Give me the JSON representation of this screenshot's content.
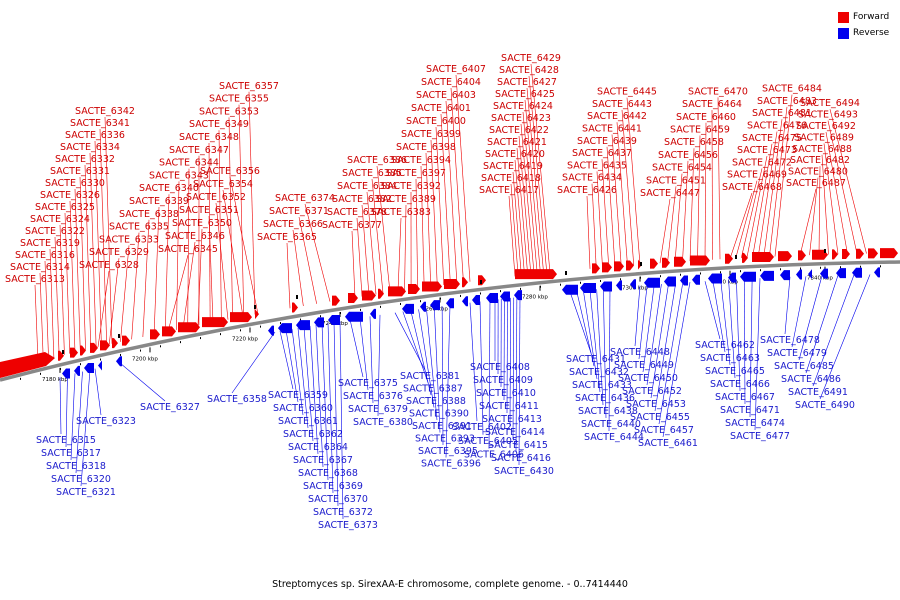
{
  "legend": {
    "forward_label": "Forward",
    "reverse_label": "Reverse",
    "forward_color": "#ee0000",
    "reverse_color": "#0000ee"
  },
  "caption": "Streptomyces sp. SirexAA-E chromosome, complete genome. - 0..7414440",
  "backbone": {
    "color": "#888888",
    "tick_color": "#000000"
  },
  "scale_ticks": [
    {
      "label": "7180 kbp"
    },
    {
      "label": "7200 kbp"
    },
    {
      "label": "7220 kbp"
    },
    {
      "label": "7240 kbp"
    },
    {
      "label": "7260 kbp"
    },
    {
      "label": "7280 kbp"
    },
    {
      "label": "7300 kbp"
    },
    {
      "label": "7320 kbp"
    },
    {
      "label": "7340 kbp"
    }
  ],
  "forward_genes": [
    "SACTE_6313",
    "SACTE_6314",
    "SACTE_6316",
    "SACTE_6319",
    "SACTE_6322",
    "SACTE_6324",
    "SACTE_6325",
    "SACTE_6326",
    "SACTE_6330",
    "SACTE_6331",
    "SACTE_6332",
    "SACTE_6334",
    "SACTE_6336",
    "SACTE_6341",
    "SACTE_6342",
    "SACTE_6328",
    "SACTE_6329",
    "SACTE_6333",
    "SACTE_6335",
    "SACTE_6338",
    "SACTE_6339",
    "SACTE_6340",
    "SACTE_6343",
    "SACTE_6344",
    "SACTE_6347",
    "SACTE_6348",
    "SACTE_6349",
    "SACTE_6353",
    "SACTE_6355",
    "SACTE_6357",
    "SACTE_6345",
    "SACTE_6346",
    "SACTE_6350",
    "SACTE_6351",
    "SACTE_6352",
    "SACTE_6354",
    "SACTE_6356",
    "SACTE_6365",
    "SACTE_6366",
    "SACTE_6371",
    "SACTE_6374",
    "SACTE_6377",
    "SACTE_6378",
    "SACTE_6382",
    "SACTE_6384",
    "SACTE_6385",
    "SACTE_6386",
    "SACTE_6383",
    "SACTE_6389",
    "SACTE_6392",
    "SACTE_6397",
    "SACTE_6394",
    "SACTE_6398",
    "SACTE_6399",
    "SACTE_6400",
    "SACTE_6401",
    "SACTE_6403",
    "SACTE_6404",
    "SACTE_6407",
    "SACTE_6417",
    "SACTE_6418",
    "SACTE_6419",
    "SACTE_6420",
    "SACTE_6421",
    "SACTE_6422",
    "SACTE_6423",
    "SACTE_6424",
    "SACTE_6425",
    "SACTE_6427",
    "SACTE_6428",
    "SACTE_6429",
    "SACTE_6426",
    "SACTE_6434",
    "SACTE_6435",
    "SACTE_6437",
    "SACTE_6439",
    "SACTE_6441",
    "SACTE_6442",
    "SACTE_6443",
    "SACTE_6445",
    "SACTE_6447",
    "SACTE_6451",
    "SACTE_6454",
    "SACTE_6456",
    "SACTE_6458",
    "SACTE_6459",
    "SACTE_6460",
    "SACTE_6464",
    "SACTE_6470",
    "SACTE_6468",
    "SACTE_6469",
    "SACTE_6472",
    "SACTE_6473",
    "SACTE_6475",
    "SACTE_6476",
    "SACTE_6481",
    "SACTE_6483",
    "SACTE_6484",
    "SACTE_6487",
    "SACTE_6480",
    "SACTE_6482",
    "SACTE_6488",
    "SACTE_6489",
    "SACTE_6492",
    "SACTE_6493",
    "SACTE_6494"
  ],
  "reverse_genes": [
    "SACTE_6315",
    "SACTE_6317",
    "SACTE_6318",
    "SACTE_6320",
    "SACTE_6321",
    "SACTE_6323",
    "SACTE_6327",
    "SACTE_6358",
    "SACTE_6359",
    "SACTE_6360",
    "SACTE_6361",
    "SACTE_6362",
    "SACTE_6364",
    "SACTE_6367",
    "SACTE_6368",
    "SACTE_6369",
    "SACTE_6370",
    "SACTE_6372",
    "SACTE_6373",
    "SACTE_6375",
    "SACTE_6376",
    "SACTE_6379",
    "SACTE_6380",
    "SACTE_6381",
    "SACTE_6387",
    "SACTE_6388",
    "SACTE_6390",
    "SACTE_6391",
    "SACTE_6393",
    "SACTE_6395",
    "SACTE_6396",
    "SACTE_6402",
    "SACTE_6405",
    "SACTE_6406",
    "SACTE_6408",
    "SACTE_6409",
    "SACTE_6410",
    "SACTE_6411",
    "SACTE_6413",
    "SACTE_6414",
    "SACTE_6415",
    "SACTE_6416",
    "SACTE_6430",
    "SACTE_6431",
    "SACTE_6432",
    "SACTE_6433",
    "SACTE_6436",
    "SACTE_6438",
    "SACTE_6440",
    "SACTE_6444",
    "SACTE_6448",
    "SACTE_6449",
    "SACTE_6450",
    "SACTE_6452",
    "SACTE_6453",
    "SACTE_6455",
    "SACTE_6457",
    "SACTE_6461",
    "SACTE_6462",
    "SACTE_6463",
    "SACTE_6465",
    "SACTE_6466",
    "SACTE_6467",
    "SACTE_6471",
    "SACTE_6474",
    "SACTE_6477",
    "SACTE_6478",
    "SACTE_6479",
    "SACTE_6485",
    "SACTE_6486",
    "SACTE_6491",
    "SACTE_6490"
  ]
}
